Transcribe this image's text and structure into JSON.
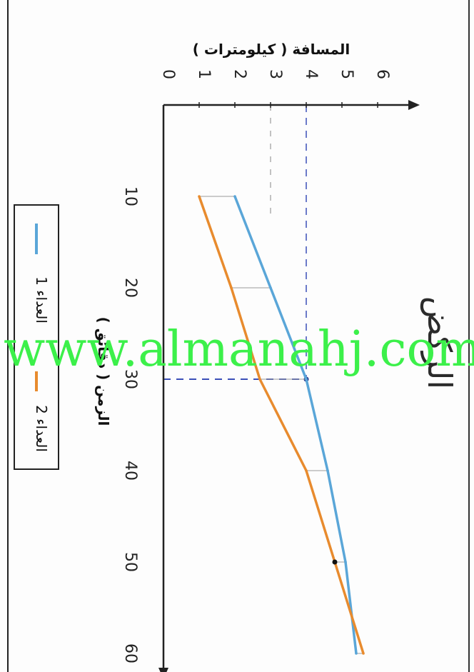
{
  "chart_data": {
    "type": "line",
    "title": "الركض",
    "xlabel": "الزمن ( دقائق )",
    "ylabel": "المسافة ( كيلومترات )",
    "x_ticks": [
      "10",
      "20",
      "30",
      "40",
      "50",
      "60"
    ],
    "y_ticks": [
      "0",
      "1",
      "2",
      "3",
      "4",
      "5",
      "6"
    ],
    "xlim": [
      0,
      65
    ],
    "ylim": [
      0,
      6.5
    ],
    "x": [
      10,
      20,
      30,
      40,
      50,
      60
    ],
    "series": [
      {
        "name": "العداء 1",
        "color": "#5aa6d8",
        "values": [
          2,
          3,
          4,
          4.6,
          5.1,
          5.4
        ]
      },
      {
        "name": "العداء 2",
        "color": "#e88b2e",
        "values": [
          1,
          1.9,
          2.7,
          4,
          4.8,
          5.6
        ]
      }
    ],
    "annotations": [
      {
        "note": "dashed guide",
        "x": 30,
        "y": 4
      }
    ],
    "legend_position": "left",
    "orientation": "rotated 90° clockwise"
  },
  "watermark": "www.almanahj.com"
}
